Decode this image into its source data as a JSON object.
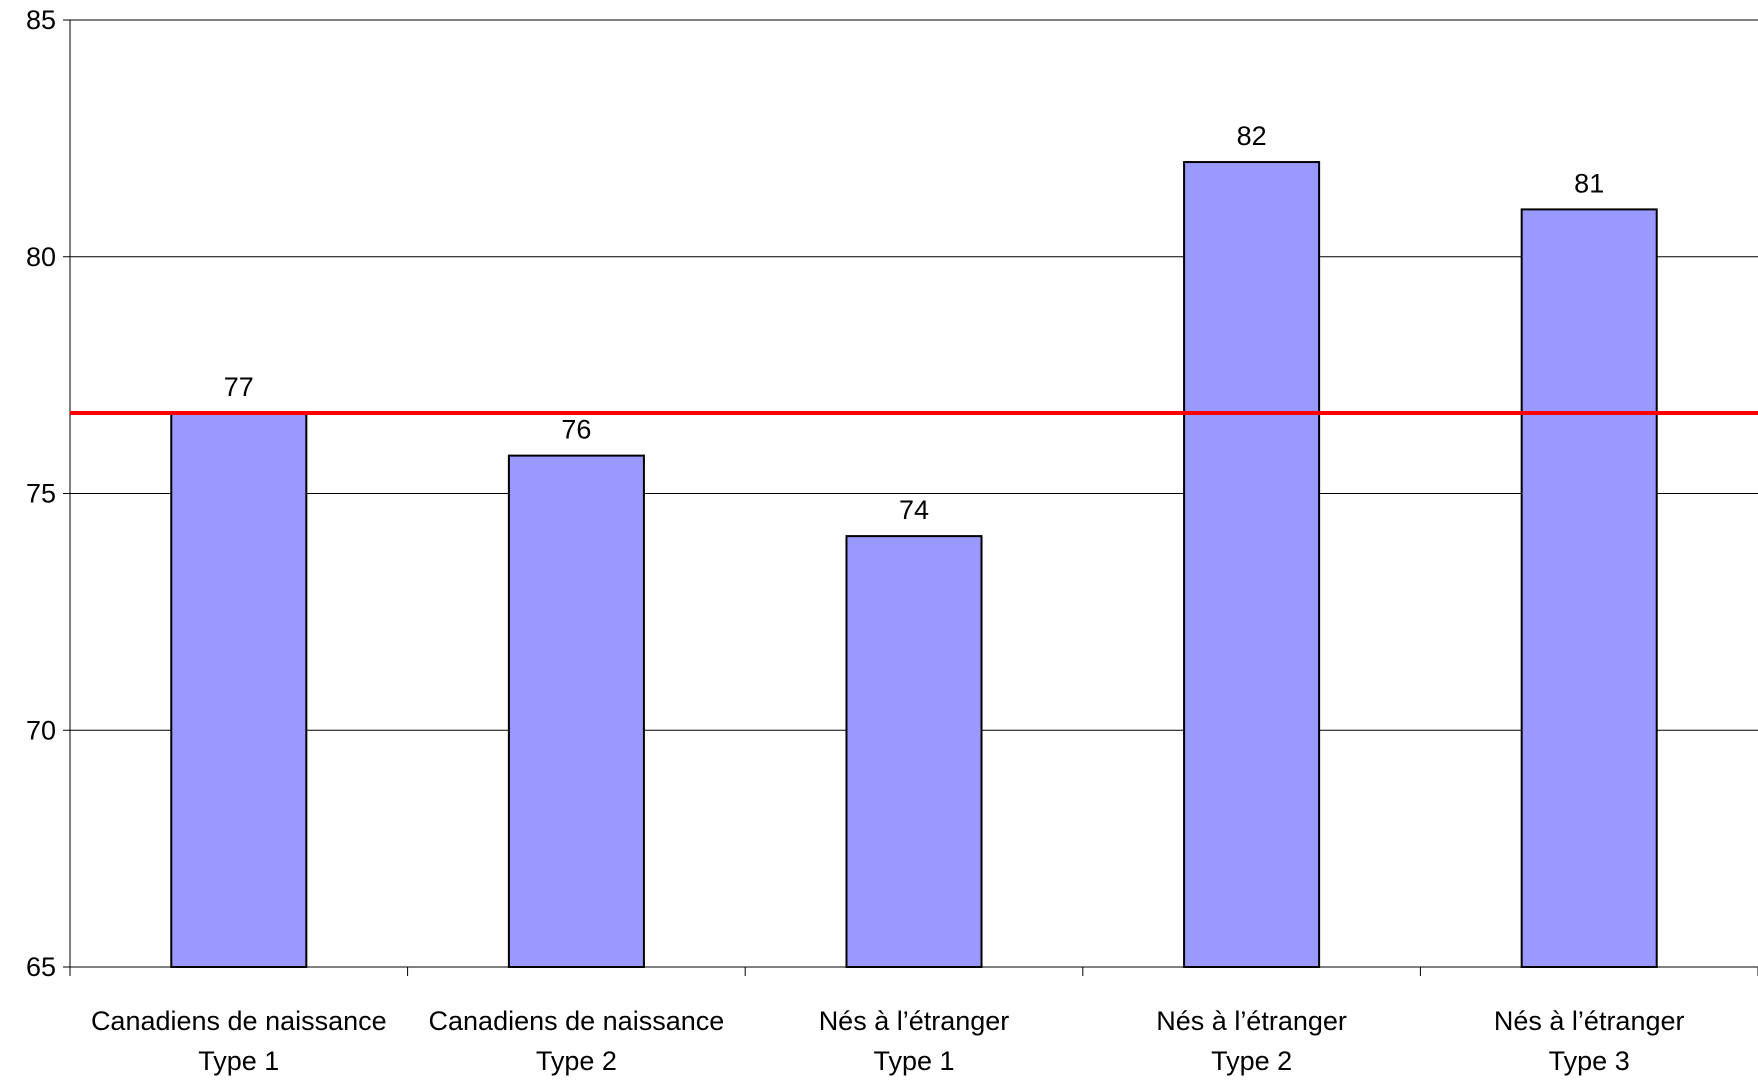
{
  "chart_data": {
    "type": "bar",
    "categories": [
      [
        "Canadiens de naissance",
        "Type 1"
      ],
      [
        "Canadiens de naissance",
        "Type 2"
      ],
      [
        "Nés à l’étranger",
        "Type 1"
      ],
      [
        "Nés à l’étranger",
        "Type 2"
      ],
      [
        "Nés à l’étranger",
        "Type 3"
      ]
    ],
    "values": [
      76.7,
      75.8,
      74.1,
      82.0,
      81.0
    ],
    "data_labels": [
      "77",
      "76",
      "74",
      "82",
      "81"
    ],
    "reference_line": {
      "value": 76.7,
      "color": "#ff0000"
    },
    "ylim": [
      65,
      85
    ],
    "y_ticks": [
      65,
      70,
      75,
      80,
      85
    ],
    "grid": true,
    "bar_color": "#9999ff",
    "title": "",
    "xlabel": "",
    "ylabel": ""
  }
}
